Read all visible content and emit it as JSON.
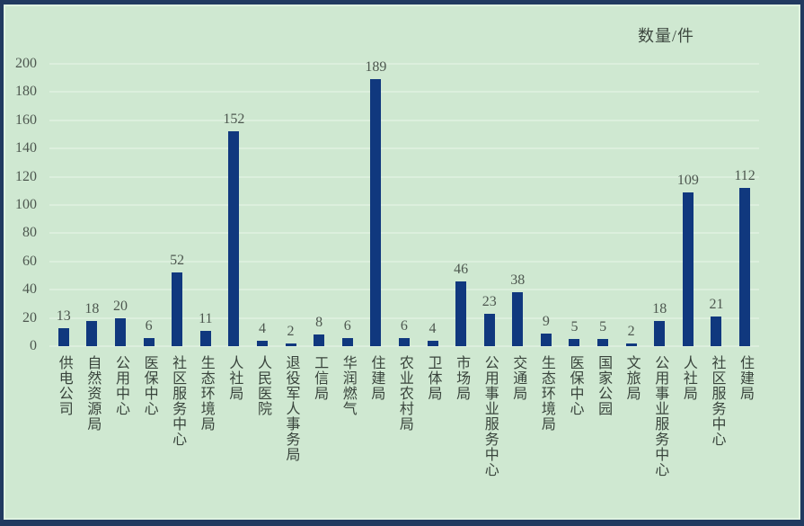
{
  "chart_data": {
    "type": "bar",
    "title": "数量/件",
    "categories": [
      "供电公司",
      "自然资源局",
      "公用中心",
      "医保中心",
      "社区服务中心",
      "生态环境局",
      "人社局",
      "人民医院",
      "退役军人事务局",
      "工信局",
      "华润燃气",
      "住建局",
      "农业农村局",
      "卫体局",
      "市场局",
      "公用事业服务中心",
      "交通局",
      "生态环境局",
      "医保中心",
      "国家公园",
      "文旅局",
      "公用事业服务中心",
      "人社局",
      "社区服务中心",
      "住建局"
    ],
    "values": [
      13,
      18,
      20,
      6,
      52,
      11,
      152,
      4,
      2,
      8,
      6,
      189,
      6,
      4,
      46,
      23,
      38,
      9,
      5,
      5,
      2,
      18,
      109,
      21,
      112
    ],
    "xlabel": "",
    "ylabel": "数量/件",
    "ylim": [
      0,
      200
    ],
    "yticks": [
      0,
      20,
      40,
      60,
      80,
      100,
      120,
      140,
      160,
      180,
      200
    ],
    "grid": true,
    "legend_position": "none",
    "colors": {
      "bar": "#10387e",
      "background": "#cfe8d1",
      "frame": "#213a60",
      "gridline": "#dcefdd",
      "tick_text": "#4d574f",
      "label_text": "#39443c"
    }
  }
}
